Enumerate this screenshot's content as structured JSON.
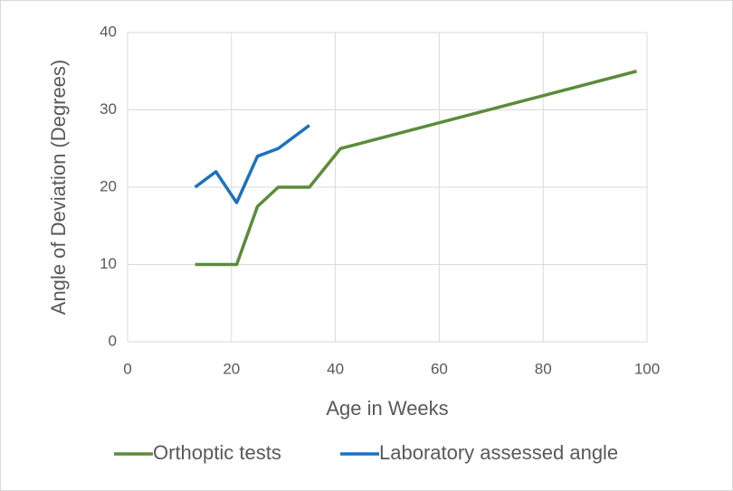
{
  "chart_data": {
    "type": "line",
    "xlabel": "Age in Weeks",
    "ylabel": "Angle of Deviation (Degrees)",
    "xlim": [
      0,
      100
    ],
    "xticks": [
      0,
      20,
      40,
      60,
      80,
      100
    ],
    "ylim": [
      0,
      40
    ],
    "yticks": [
      0,
      10,
      20,
      30,
      40
    ],
    "grid": true,
    "legend": "bottom",
    "series": [
      {
        "name": "Orthoptic tests",
        "color": "#5b8c3a",
        "x": [
          13,
          17,
          21,
          25,
          29,
          35,
          41,
          98
        ],
        "values": [
          10,
          10,
          10,
          17.5,
          20,
          20,
          25,
          35
        ]
      },
      {
        "name": "Laboratory assessed angle",
        "color": "#1b72be",
        "x": [
          13,
          17,
          21,
          25,
          29,
          35
        ],
        "values": [
          20,
          22,
          18,
          24,
          25,
          28
        ]
      }
    ]
  }
}
